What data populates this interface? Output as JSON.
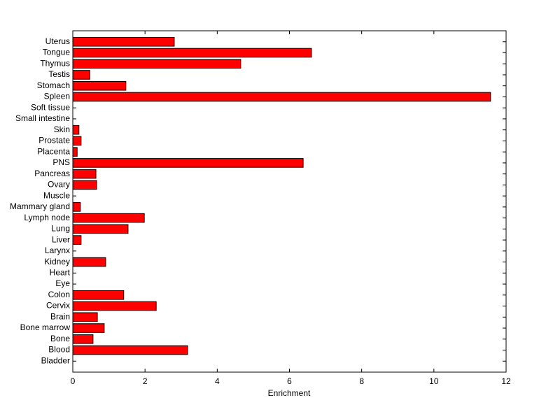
{
  "chart_data": {
    "type": "barh",
    "xlabel": "Enrichment",
    "categories": [
      "Bladder",
      "Blood",
      "Bone",
      "Bone marrow",
      "Brain",
      "Cervix",
      "Colon",
      "Eye",
      "Heart",
      "Kidney",
      "Larynx",
      "Liver",
      "Lung",
      "Lymph node",
      "Mammary gland",
      "Muscle",
      "Ovary",
      "Pancreas",
      "PNS",
      "Placenta",
      "Prostate",
      "Skin",
      "Small intestine",
      "Soft tissue",
      "Spleen",
      "Stomach",
      "Testis",
      "Thymus",
      "Tongue",
      "Uterus"
    ],
    "values": [
      0,
      3.18,
      0.56,
      0.87,
      0.68,
      2.31,
      1.41,
      0,
      0,
      0.91,
      0,
      0.23,
      1.53,
      1.98,
      0.21,
      0,
      0.66,
      0.64,
      6.38,
      0.12,
      0.23,
      0.17,
      0,
      0,
      11.57,
      1.47,
      0.47,
      4.65,
      6.61,
      2.81
    ],
    "color": "#ff0000",
    "xlim": [
      0,
      12
    ],
    "xticks": [
      0,
      2,
      4,
      6,
      8,
      10,
      12
    ]
  }
}
